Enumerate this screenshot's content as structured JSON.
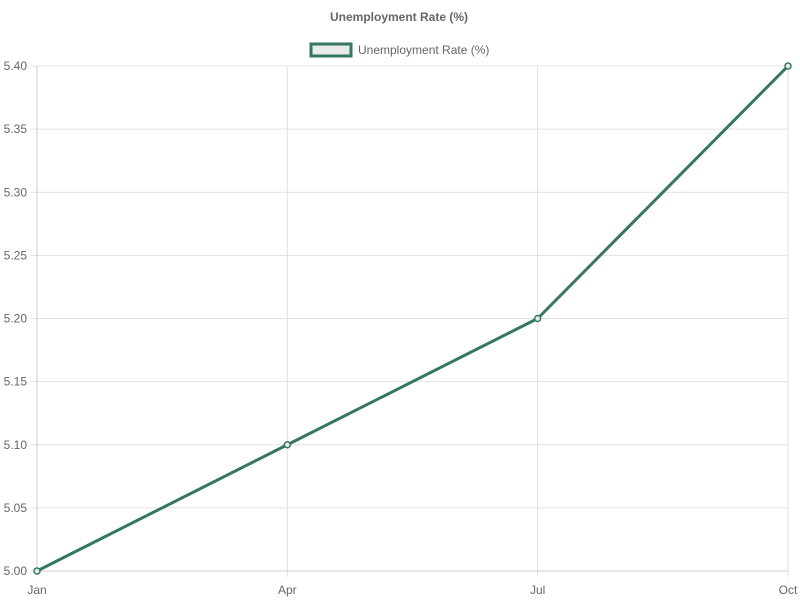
{
  "chart_data": {
    "type": "line",
    "title": "Unemployment Rate (%)",
    "categories": [
      "Jan",
      "Apr",
      "Jul",
      "Oct"
    ],
    "series": [
      {
        "name": "Unemployment Rate (%)",
        "values": [
          5.0,
          5.1,
          5.2,
          5.4
        ],
        "color": "#35775f",
        "fill": "#e8ebe9"
      }
    ],
    "ylim": [
      5.0,
      5.4
    ],
    "yticks": [
      "5.00",
      "5.05",
      "5.10",
      "5.15",
      "5.20",
      "5.25",
      "5.30",
      "5.35",
      "5.40"
    ],
    "grid": true,
    "legend": "top-center",
    "colors": {
      "grid": "#e1e1e1",
      "text": "#666666"
    }
  }
}
